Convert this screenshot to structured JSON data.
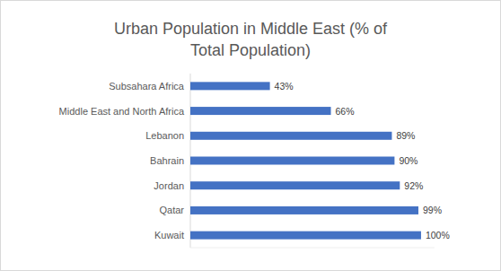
{
  "chart_data": {
    "type": "bar",
    "orientation": "horizontal",
    "title": "Urban Population in Middle East (% of Total Population)",
    "categories": [
      "Subsahara Africa",
      "Middle East and North Africa",
      "Lebanon",
      "Bahrain",
      "Jordan",
      "Qatar",
      "Kuwait"
    ],
    "values": [
      43,
      66,
      89,
      90,
      92,
      99,
      100
    ],
    "value_labels": [
      "43%",
      "66%",
      "89%",
      "90%",
      "92%",
      "99%",
      "100%"
    ],
    "color": "#4472c4",
    "xlim": [
      13,
      105
    ],
    "data_labels": true,
    "tick_labels": false,
    "grid": false
  }
}
